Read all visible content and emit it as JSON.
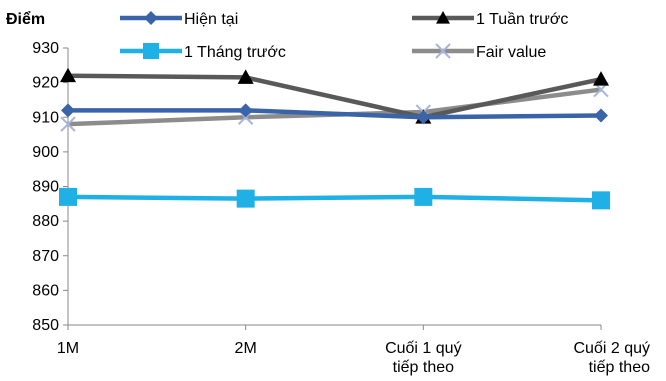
{
  "chart_data": {
    "type": "line",
    "ylabel": "Điểm",
    "categories": [
      "1M",
      "2M",
      "Cuối 1 quý tiếp theo",
      "Cuối 2 quý tiếp theo"
    ],
    "category_lines": [
      [
        "1M"
      ],
      [
        "2M"
      ],
      [
        "Cuối 1 quý",
        "tiếp theo"
      ],
      [
        "Cuối 2 quý",
        "tiếp theo"
      ]
    ],
    "ylim": [
      850,
      930
    ],
    "yticks": [
      "850",
      "860",
      "870",
      "880",
      "890",
      "900",
      "910",
      "920",
      "930"
    ],
    "grid": false,
    "legend_position": "top",
    "series": [
      {
        "name": "Hiện tại",
        "values": [
          912,
          912,
          910,
          910.5
        ],
        "color": "#3a64a8",
        "marker": "diamond"
      },
      {
        "name": "1 Tuần trước",
        "values": [
          922,
          921.5,
          910,
          921
        ],
        "color": "#595959",
        "marker": "triangle"
      },
      {
        "name": "1 Tháng trước",
        "values": [
          887,
          886.5,
          887,
          886
        ],
        "color": "#1fb0e6",
        "marker": "square"
      },
      {
        "name": "Fair value",
        "values": [
          908,
          910,
          911.5,
          918
        ],
        "color": "#8c8c8c",
        "marker": "x"
      }
    ]
  }
}
